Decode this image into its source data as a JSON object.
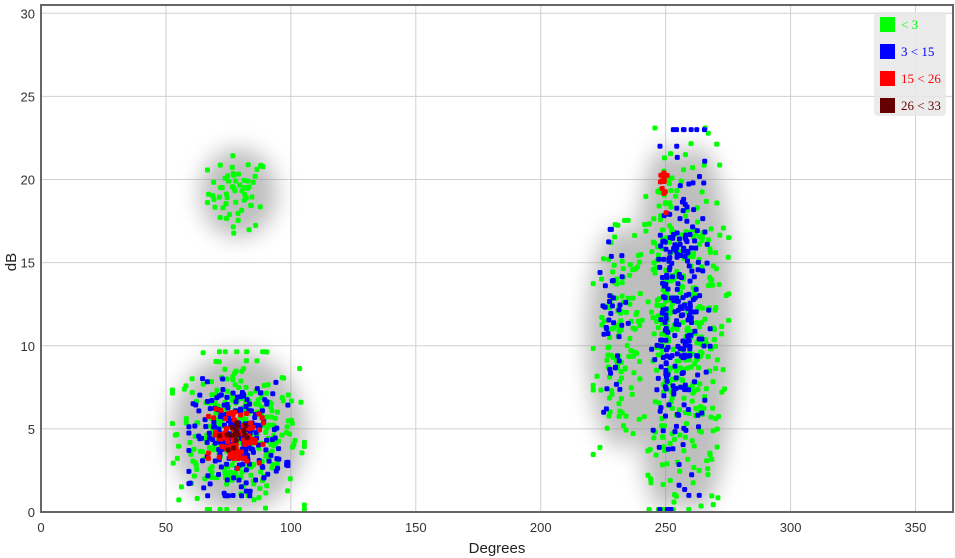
{
  "chart_data": {
    "type": "scatter",
    "title": "",
    "xlabel": "Degrees",
    "ylabel": "dB",
    "xlim": [
      0,
      365
    ],
    "ylim": [
      0,
      30.5
    ],
    "xticks": [
      "0",
      "50",
      "100",
      "150",
      "200",
      "250",
      "300",
      "350"
    ],
    "yticks": [
      "0",
      "5",
      "10",
      "15",
      "20",
      "25",
      "30"
    ],
    "grid": true,
    "legend_position": "top-right",
    "series": [
      {
        "name": "< 3",
        "color": "#00ff00",
        "clusters": [
          {
            "cx": 79,
            "cy": 19.2,
            "sx": 6,
            "sy": 1.1,
            "n": 60
          },
          {
            "cx": 79,
            "cy": 4.8,
            "sx": 12,
            "sy": 2.2,
            "n": 320
          },
          {
            "cx": 232,
            "cy": 10.5,
            "sx": 5,
            "sy": 3.2,
            "n": 120
          },
          {
            "cx": 250,
            "cy": 11,
            "sx": 5,
            "sy": 5.5,
            "n": 180
          },
          {
            "cx": 262,
            "cy": 11,
            "sx": 6,
            "sy": 5.5,
            "n": 200
          }
        ]
      },
      {
        "name": "3 < 15",
        "color": "#0000ff",
        "clusters": [
          {
            "cx": 79,
            "cy": 4.5,
            "sx": 9,
            "sy": 1.6,
            "n": 220
          },
          {
            "cx": 229,
            "cy": 11.5,
            "sx": 3,
            "sy": 2.5,
            "n": 40
          },
          {
            "cx": 251,
            "cy": 11,
            "sx": 3,
            "sy": 5,
            "n": 110
          },
          {
            "cx": 259,
            "cy": 12,
            "sx": 4,
            "sy": 5,
            "n": 140
          }
        ]
      },
      {
        "name": "15 < 26",
        "color": "#ff0000",
        "clusters": [
          {
            "cx": 78,
            "cy": 4.6,
            "sx": 5,
            "sy": 0.9,
            "n": 90
          },
          {
            "cx": 248.5,
            "cy": 19.5,
            "sx": 1,
            "sy": 0.7,
            "n": 12
          }
        ]
      },
      {
        "name": "26 < 33",
        "color": "#660000",
        "clusters": [
          {
            "cx": 77,
            "cy": 4.6,
            "sx": 2.5,
            "sy": 0.5,
            "n": 18
          }
        ]
      }
    ]
  }
}
